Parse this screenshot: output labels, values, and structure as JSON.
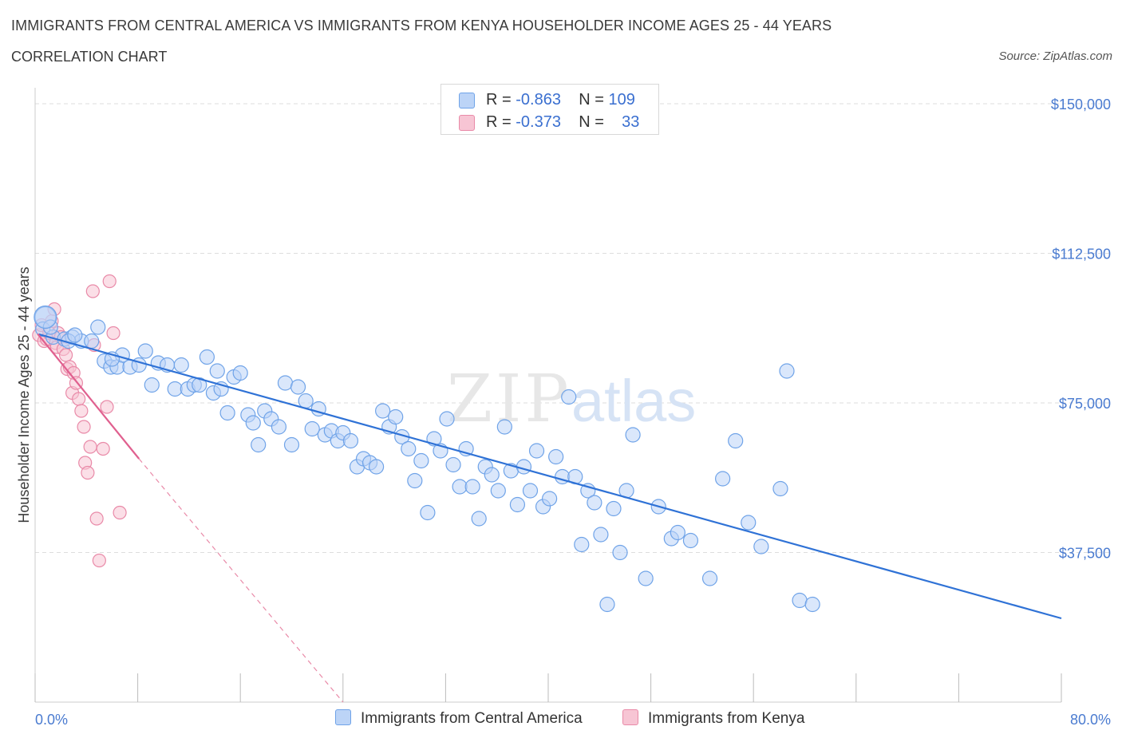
{
  "header": {
    "title": "IMMIGRANTS FROM CENTRAL AMERICA VS IMMIGRANTS FROM KENYA HOUSEHOLDER INCOME AGES 25 - 44 YEARS",
    "subtitle": "CORRELATION CHART",
    "source": "Source: ZipAtlas.com"
  },
  "watermark": "ZIPatlas",
  "colors": {
    "blue": "#6fa3e8",
    "blue_fill": "#bcd4f7",
    "blue_line": "#2f72d6",
    "pink": "#e98aa8",
    "pink_fill": "#f7c5d4",
    "pink_line": "#e0608f",
    "tick_text": "#4a7bd0",
    "grid": "#dddddd"
  },
  "legend": {
    "rows": [
      {
        "r_label": "R = ",
        "r_value": "-0.863",
        "n_label": "N = ",
        "n_value": "109"
      },
      {
        "r_label": "R = ",
        "r_value": "-0.373",
        "n_label": "N = ",
        "n_value": "33"
      }
    ],
    "bottom": [
      "Immigrants from Central America",
      "Immigrants from Kenya"
    ]
  },
  "chart_data": {
    "type": "scatter",
    "title": "IMMIGRANTS FROM CENTRAL AMERICA VS IMMIGRANTS FROM KENYA HOUSEHOLDER INCOME AGES 25 - 44 YEARS",
    "xlabel": "",
    "ylabel": "Householder Income Ages 25 - 44 years",
    "xlim": [
      0,
      80
    ],
    "ylim": [
      0,
      150000
    ],
    "x_tick_labels": [
      "0.0%",
      "80.0%"
    ],
    "y_ticks": [
      37500,
      75000,
      112500,
      150000
    ],
    "y_tick_labels": [
      "$37,500",
      "$75,000",
      "$112,500",
      "$150,000"
    ],
    "grid": true,
    "legend_position": "top-center",
    "series": [
      {
        "name": "Immigrants from Central America",
        "R": -0.863,
        "N": 109,
        "trend": {
          "x": [
            0.3,
            80
          ],
          "y": [
            92200,
            21000
          ]
        },
        "points": [
          [
            0.8,
            96500
          ],
          [
            0.6,
            93500
          ],
          [
            1.4,
            91500
          ],
          [
            2.3,
            91000
          ],
          [
            2.9,
            91500
          ],
          [
            3.6,
            90500
          ],
          [
            4.4,
            90500
          ],
          [
            4.9,
            94000
          ],
          [
            5.4,
            85500
          ],
          [
            5.9,
            84000
          ],
          [
            6.4,
            84000
          ],
          [
            6.8,
            87000
          ],
          [
            7.4,
            84000
          ],
          [
            8.1,
            84500
          ],
          [
            8.6,
            88000
          ],
          [
            9.1,
            79500
          ],
          [
            9.6,
            85000
          ],
          [
            10.3,
            84500
          ],
          [
            10.9,
            78500
          ],
          [
            11.4,
            84500
          ],
          [
            11.9,
            78500
          ],
          [
            12.4,
            79500
          ],
          [
            12.8,
            79500
          ],
          [
            13.4,
            86500
          ],
          [
            13.9,
            77500
          ],
          [
            14.5,
            78500
          ],
          [
            15.0,
            72500
          ],
          [
            15.5,
            81500
          ],
          [
            16.0,
            82500
          ],
          [
            16.6,
            72000
          ],
          [
            17.0,
            70000
          ],
          [
            17.4,
            64500
          ],
          [
            17.9,
            73000
          ],
          [
            18.4,
            71000
          ],
          [
            19.0,
            69000
          ],
          [
            19.5,
            80000
          ],
          [
            20.0,
            64500
          ],
          [
            20.5,
            79000
          ],
          [
            21.1,
            75500
          ],
          [
            21.6,
            68500
          ],
          [
            22.1,
            73500
          ],
          [
            22.6,
            67000
          ],
          [
            23.1,
            68000
          ],
          [
            23.6,
            65500
          ],
          [
            24.0,
            67500
          ],
          [
            24.6,
            65500
          ],
          [
            25.1,
            59000
          ],
          [
            25.6,
            61000
          ],
          [
            26.1,
            60000
          ],
          [
            26.6,
            59000
          ],
          [
            27.1,
            73000
          ],
          [
            27.6,
            69000
          ],
          [
            28.1,
            71500
          ],
          [
            28.6,
            66500
          ],
          [
            29.1,
            63500
          ],
          [
            29.6,
            55500
          ],
          [
            30.1,
            60500
          ],
          [
            30.6,
            47500
          ],
          [
            31.1,
            66000
          ],
          [
            31.6,
            63000
          ],
          [
            32.1,
            71000
          ],
          [
            32.6,
            59500
          ],
          [
            33.1,
            54000
          ],
          [
            33.6,
            63500
          ],
          [
            34.1,
            54000
          ],
          [
            34.6,
            46000
          ],
          [
            35.1,
            59000
          ],
          [
            35.6,
            57000
          ],
          [
            36.1,
            53000
          ],
          [
            36.6,
            69000
          ],
          [
            37.1,
            58000
          ],
          [
            37.6,
            49500
          ],
          [
            38.1,
            59000
          ],
          [
            38.6,
            53000
          ],
          [
            39.1,
            63000
          ],
          [
            39.6,
            49000
          ],
          [
            40.1,
            51000
          ],
          [
            40.6,
            61500
          ],
          [
            41.1,
            56500
          ],
          [
            41.6,
            76500
          ],
          [
            42.1,
            56500
          ],
          [
            42.6,
            39500
          ],
          [
            43.1,
            53000
          ],
          [
            43.6,
            50000
          ],
          [
            44.1,
            42000
          ],
          [
            44.6,
            24500
          ],
          [
            45.1,
            48500
          ],
          [
            45.6,
            37500
          ],
          [
            46.1,
            53000
          ],
          [
            46.6,
            67000
          ],
          [
            47.6,
            31000
          ],
          [
            48.6,
            49000
          ],
          [
            49.6,
            41000
          ],
          [
            50.1,
            42500
          ],
          [
            51.1,
            40500
          ],
          [
            52.6,
            31000
          ],
          [
            53.6,
            56000
          ],
          [
            54.6,
            65500
          ],
          [
            55.6,
            45000
          ],
          [
            56.6,
            39000
          ],
          [
            58.1,
            53500
          ],
          [
            58.6,
            83000
          ],
          [
            59.6,
            25500
          ],
          [
            60.6,
            24500
          ],
          [
            1.2,
            94000
          ],
          [
            2.6,
            90500
          ],
          [
            3.1,
            92000
          ],
          [
            6.0,
            86000
          ],
          [
            14.2,
            83000
          ]
        ]
      },
      {
        "name": "Immigrants from Kenya",
        "R": -0.373,
        "N": 33,
        "trend": {
          "x": [
            0.2,
            8.1
          ],
          "y": [
            92300,
            61000
          ]
        },
        "trend_dashed": {
          "x": [
            8.1,
            24.0
          ],
          "y": [
            61000,
            0
          ]
        },
        "points": [
          [
            0.3,
            92000
          ],
          [
            0.5,
            94500
          ],
          [
            0.7,
            90500
          ],
          [
            0.9,
            91000
          ],
          [
            1.1,
            92500
          ],
          [
            1.3,
            95500
          ],
          [
            1.5,
            98500
          ],
          [
            1.6,
            90000
          ],
          [
            1.7,
            89000
          ],
          [
            1.8,
            92500
          ],
          [
            2.0,
            91500
          ],
          [
            2.2,
            88500
          ],
          [
            2.4,
            87000
          ],
          [
            2.5,
            83500
          ],
          [
            2.7,
            84000
          ],
          [
            2.9,
            77500
          ],
          [
            3.0,
            82500
          ],
          [
            3.2,
            80000
          ],
          [
            3.4,
            76000
          ],
          [
            3.6,
            73000
          ],
          [
            3.8,
            69000
          ],
          [
            3.9,
            60000
          ],
          [
            4.1,
            57500
          ],
          [
            4.3,
            64000
          ],
          [
            4.5,
            103000
          ],
          [
            4.6,
            89500
          ],
          [
            4.8,
            46000
          ],
          [
            5.0,
            35500
          ],
          [
            5.3,
            63500
          ],
          [
            5.6,
            74000
          ],
          [
            5.8,
            105500
          ],
          [
            6.1,
            92500
          ],
          [
            6.6,
            47500
          ]
        ]
      }
    ]
  }
}
